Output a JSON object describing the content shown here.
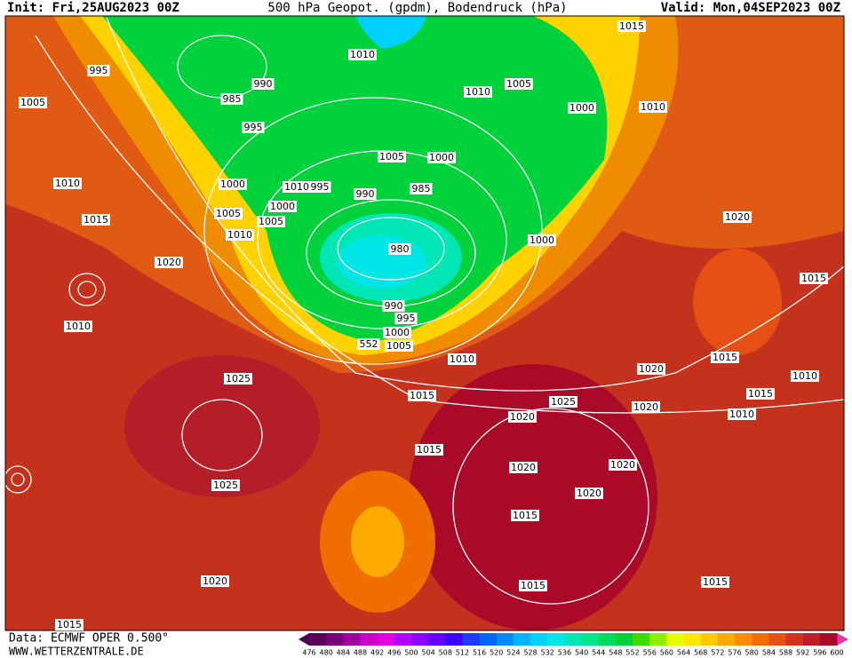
{
  "header": {
    "init": "Init: Fri,25AUG2023 00Z",
    "title": "500 hPa Geopot. (gpdm), Bodendruck (hPa)",
    "valid": "Valid: Mon,04SEP2023 00Z"
  },
  "isobar_labels": [
    "995",
    "1005",
    "1010",
    "990",
    "985",
    "995",
    "1015",
    "1010",
    "1005",
    "1000",
    "1010",
    "1005",
    "1000",
    "1010",
    "995",
    "990",
    "985",
    "1000",
    "1000",
    "1005",
    "1005",
    "1010",
    "1010",
    "1015",
    "1020",
    "980",
    "1000",
    "1020",
    "1015",
    "1010",
    "990",
    "995",
    "1000",
    "1005",
    "552",
    "1010",
    "1020",
    "1015",
    "1025",
    "1015",
    "1025",
    "1020",
    "1015",
    "1010",
    "1010",
    "1020",
    "1015",
    "1020",
    "1020",
    "1025",
    "1020",
    "1015",
    "1020",
    "1015",
    "1015",
    "1015"
  ],
  "legend": {
    "levels": [
      476,
      480,
      484,
      488,
      492,
      496,
      500,
      504,
      508,
      512,
      516,
      520,
      524,
      528,
      532,
      536,
      540,
      544,
      548,
      552,
      556,
      560,
      564,
      568,
      572,
      576,
      580,
      584,
      588,
      592,
      596,
      600
    ],
    "colors": [
      "#5a005a",
      "#7a007a",
      "#a000a0",
      "#c800c8",
      "#e000e0",
      "#b400ff",
      "#8c00ff",
      "#6400ff",
      "#3c00ff",
      "#1e3cff",
      "#0064ff",
      "#008cff",
      "#00b4ff",
      "#00d2ff",
      "#00e6e6",
      "#00e6b4",
      "#00e68c",
      "#00dc5a",
      "#00d23c",
      "#3cdc00",
      "#8cf000",
      "#e6ff00",
      "#ffe600",
      "#ffc800",
      "#ffaa00",
      "#ff8c00",
      "#f06e00",
      "#e65014",
      "#d2321e",
      "#be1e28",
      "#aa0a28"
    ]
  },
  "footer": {
    "source": "Data: ECMWF OPER 0.500°",
    "website": "WWW.WETTERZENTRALE.DE"
  }
}
